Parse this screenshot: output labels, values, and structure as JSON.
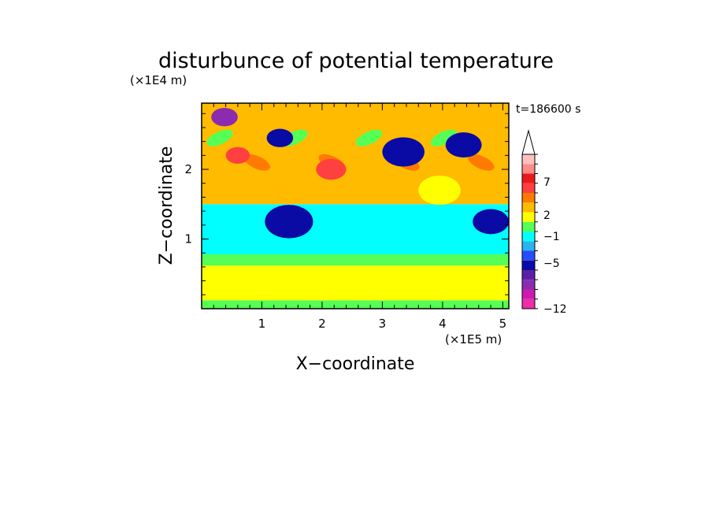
{
  "chart_data": {
    "type": "heatmap",
    "title": "disturbunce of potential temperature",
    "time_label": "t=186600 s",
    "xlabel": "X−coordinate",
    "ylabel": "Z−coordinate",
    "x_unit": "(×1E5 m)",
    "y_unit": "(×1E4 m)",
    "xlim": [
      0,
      5.1
    ],
    "ylim": [
      0,
      2.95
    ],
    "x_ticks": [
      1,
      2,
      3,
      4,
      5
    ],
    "x_tick_labels": [
      "1",
      "2",
      "3",
      "4",
      "5"
    ],
    "y_ticks": [
      1,
      2
    ],
    "y_tick_labels": [
      "1",
      "2"
    ],
    "colorbar": {
      "labels": [
        "−12",
        "−5",
        "−1",
        "2",
        "7"
      ],
      "colors": [
        "#ee2daa",
        "#cc1ab0",
        "#8a2bb0",
        "#5a1fa8",
        "#0a0aa5",
        "#2a4aff",
        "#28b4f0",
        "#00ffff",
        "#55ff55",
        "#ffff00",
        "#ffbb00",
        "#ff7a00",
        "#ff4040",
        "#ea1a1a",
        "#ff8a8a",
        "#ffc0c0"
      ],
      "extend_top": true
    },
    "bands": [
      {
        "z0": 0.0,
        "z1": 0.12,
        "level": "green"
      },
      {
        "z0": 0.12,
        "z1": 0.62,
        "level": "yellow"
      },
      {
        "z0": 0.62,
        "z1": 0.78,
        "level": "green"
      },
      {
        "z0": 0.78,
        "z1": 1.5,
        "level": "cyan"
      },
      {
        "z0": 1.5,
        "z1": 2.95,
        "level": "orange"
      }
    ],
    "features": [
      {
        "x": 0.38,
        "z": 2.75,
        "r": 0.22,
        "level": "purple"
      },
      {
        "x": 1.3,
        "z": 2.45,
        "r": 0.22,
        "level": "dark-blue"
      },
      {
        "x": 2.15,
        "z": 2.0,
        "r": 0.25,
        "level": "red"
      },
      {
        "x": 3.35,
        "z": 2.25,
        "r": 0.35,
        "level": "dark-blue"
      },
      {
        "x": 4.35,
        "z": 2.35,
        "r": 0.3,
        "level": "dark-blue"
      },
      {
        "x": 1.45,
        "z": 1.25,
        "r": 0.4,
        "level": "dark-blue"
      },
      {
        "x": 4.8,
        "z": 1.25,
        "r": 0.3,
        "level": "dark-blue"
      },
      {
        "x": 0.6,
        "z": 2.2,
        "r": 0.2,
        "level": "red"
      },
      {
        "x": 3.95,
        "z": 1.7,
        "r": 0.35,
        "level": "yellow"
      }
    ]
  }
}
